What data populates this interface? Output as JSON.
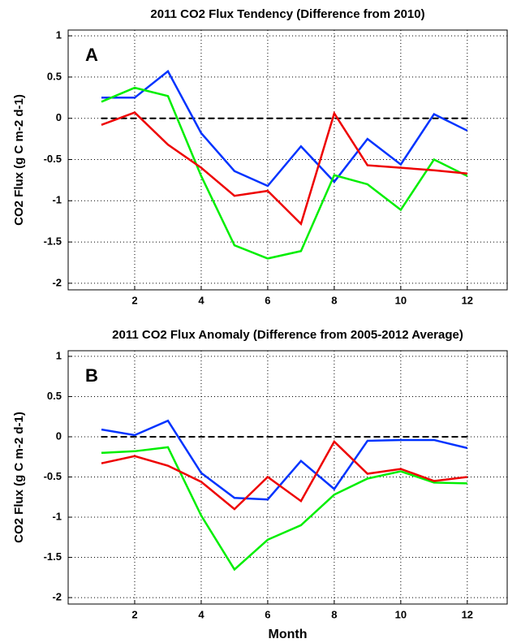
{
  "chart_data": [
    {
      "type": "line",
      "title": "2011 CO2 Flux Tendency (Difference from 2010)",
      "annotation": "A",
      "y_label": "CO2 Flux (g C m-2 d-1)",
      "x": [
        1,
        2,
        3,
        4,
        5,
        6,
        7,
        8,
        9,
        10,
        11,
        12
      ],
      "series": [
        {
          "color": "#0033ff",
          "values": [
            0.25,
            0.25,
            0.57,
            -0.18,
            -0.64,
            -0.82,
            -0.34,
            -0.77,
            -0.25,
            -0.56,
            0.05,
            -0.15
          ]
        },
        {
          "color": "#00ee00",
          "values": [
            0.2,
            0.37,
            0.27,
            -0.7,
            -1.54,
            -1.7,
            -1.61,
            -0.69,
            -0.8,
            -1.11,
            -0.5,
            -0.7
          ]
        },
        {
          "color": "#ee0000",
          "values": [
            -0.08,
            0.07,
            -0.32,
            -0.6,
            -0.94,
            -0.88,
            -1.28,
            0.06,
            -0.57,
            -0.6,
            -0.63,
            -0.67
          ]
        }
      ],
      "xlim": [
        0,
        13.2
      ],
      "xticks": [
        2,
        4,
        6,
        8,
        10,
        12
      ],
      "ylim": [
        -2.08,
        1.07
      ],
      "yticks": [
        1,
        0.5,
        0,
        -0.5,
        -1,
        -1.5,
        -2
      ],
      "grid": true,
      "hline": 0
    },
    {
      "type": "line",
      "title": "2011 CO2 Flux Anomaly (Difference from 2005-2012 Average)",
      "annotation": "B",
      "y_label": "CO2 Flux (g C m-2 d-1)",
      "x_label": "Month",
      "x": [
        1,
        2,
        3,
        4,
        5,
        6,
        7,
        8,
        9,
        10,
        11,
        12
      ],
      "series": [
        {
          "color": "#0033ff",
          "values": [
            0.09,
            0.02,
            0.2,
            -0.45,
            -0.76,
            -0.78,
            -0.3,
            -0.65,
            -0.05,
            -0.04,
            -0.04,
            -0.14
          ]
        },
        {
          "color": "#00ee00",
          "values": [
            -0.2,
            -0.18,
            -0.13,
            -0.98,
            -1.65,
            -1.28,
            -1.1,
            -0.72,
            -0.52,
            -0.43,
            -0.57,
            -0.58
          ]
        },
        {
          "color": "#ee0000",
          "values": [
            -0.33,
            -0.24,
            -0.36,
            -0.56,
            -0.9,
            -0.5,
            -0.8,
            -0.06,
            -0.46,
            -0.4,
            -0.55,
            -0.5
          ]
        }
      ],
      "xlim": [
        0,
        13.2
      ],
      "xticks": [
        2,
        4,
        6,
        8,
        10,
        12
      ],
      "ylim": [
        -2.08,
        1.07
      ],
      "yticks": [
        1,
        0.5,
        0,
        -0.5,
        -1,
        -1.5,
        -2
      ],
      "grid": true,
      "hline": 0
    }
  ]
}
